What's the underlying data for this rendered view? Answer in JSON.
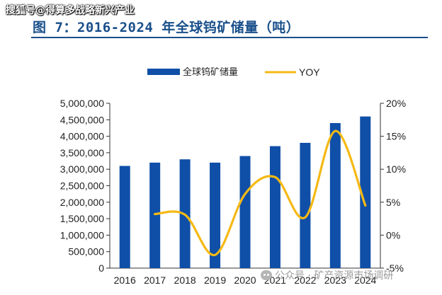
{
  "watermark_top": "搜狐号@得算多战略新兴产业",
  "watermark_bottom": "公众号 · 矿产资源市场调研",
  "figure_title": "图 7：2016-2024 年全球钨矿储量（吨）",
  "colors": {
    "bar": "#0f4fa8",
    "line": "#f5b915",
    "title": "#1a4f8b"
  },
  "chart_data": {
    "type": "bar",
    "title": "图 7：2016-2024 年全球钨矿储量（吨）",
    "categories": [
      "2016",
      "2017",
      "2018",
      "2019",
      "2020",
      "2021",
      "2022",
      "2023",
      "2024"
    ],
    "series": [
      {
        "name": "全球钨矿储量",
        "type": "bar",
        "axis": "left",
        "values": [
          3100000,
          3200000,
          3300000,
          3200000,
          3400000,
          3700000,
          3800000,
          4400000,
          4600000
        ]
      },
      {
        "name": "YOY",
        "type": "line",
        "axis": "right",
        "values": [
          null,
          3.2,
          3.1,
          -3.0,
          6.25,
          8.8,
          2.7,
          15.8,
          4.5
        ]
      }
    ],
    "y_left": {
      "lim": [
        0,
        5000000
      ],
      "ticks": [
        0,
        500000,
        1000000,
        1500000,
        2000000,
        2500000,
        3000000,
        3500000,
        4000000,
        4500000,
        5000000
      ],
      "tick_labels": [
        "0",
        "500,000",
        "1,000,000",
        "1,500,000",
        "2,000,000",
        "2,500,000",
        "3,000,000",
        "3,500,000",
        "4,000,000",
        "4,500,000",
        "5,000,000"
      ]
    },
    "y_right": {
      "lim": [
        -5,
        20
      ],
      "ticks": [
        -5,
        0,
        5,
        10,
        15,
        20
      ],
      "tick_labels": [
        "-5%",
        "0%",
        "5%",
        "10%",
        "15%",
        "20%"
      ]
    },
    "legend": {
      "position": "top",
      "entries": [
        "全球钨矿储量",
        "YOY"
      ]
    },
    "grid": false
  }
}
